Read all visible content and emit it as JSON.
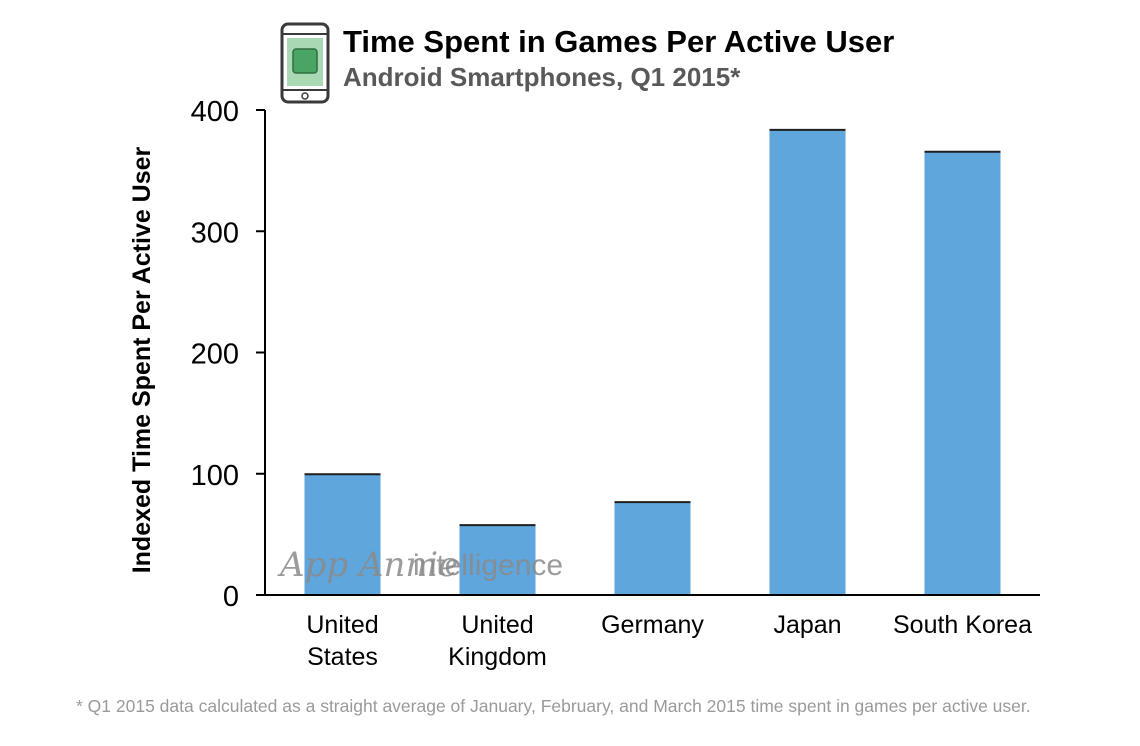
{
  "header": {
    "title": "Time Spent in Games Per Active User",
    "subtitle": "Android Smartphones, Q1 2015*",
    "icon": "smartphone-icon"
  },
  "watermark": {
    "brand": "App Annie",
    "product": "intelligence"
  },
  "footnote": "* Q1 2015 data calculated as a straight average of January, February, and March 2015 time spent in games per active user.",
  "colors": {
    "bar": "#5ea6dc",
    "bar_top": "#1f1f1f",
    "axis": "#000000",
    "phone_screen": "#4aa564"
  },
  "chart_data": {
    "type": "bar",
    "title": "Time Spent in Games Per Active User",
    "subtitle": "Android Smartphones, Q1 2015*",
    "xlabel": "",
    "ylabel": "Indexed Time Spent Per Active User",
    "ylim": [
      0,
      400
    ],
    "yticks": [
      0,
      100,
      200,
      300,
      400
    ],
    "grid": false,
    "legend": "none",
    "categories": [
      [
        "United",
        "States"
      ],
      [
        "United",
        "Kingdom"
      ],
      [
        "Germany"
      ],
      [
        "Japan"
      ],
      [
        "South Korea"
      ]
    ],
    "values": [
      100,
      58,
      77,
      384,
      366
    ]
  }
}
